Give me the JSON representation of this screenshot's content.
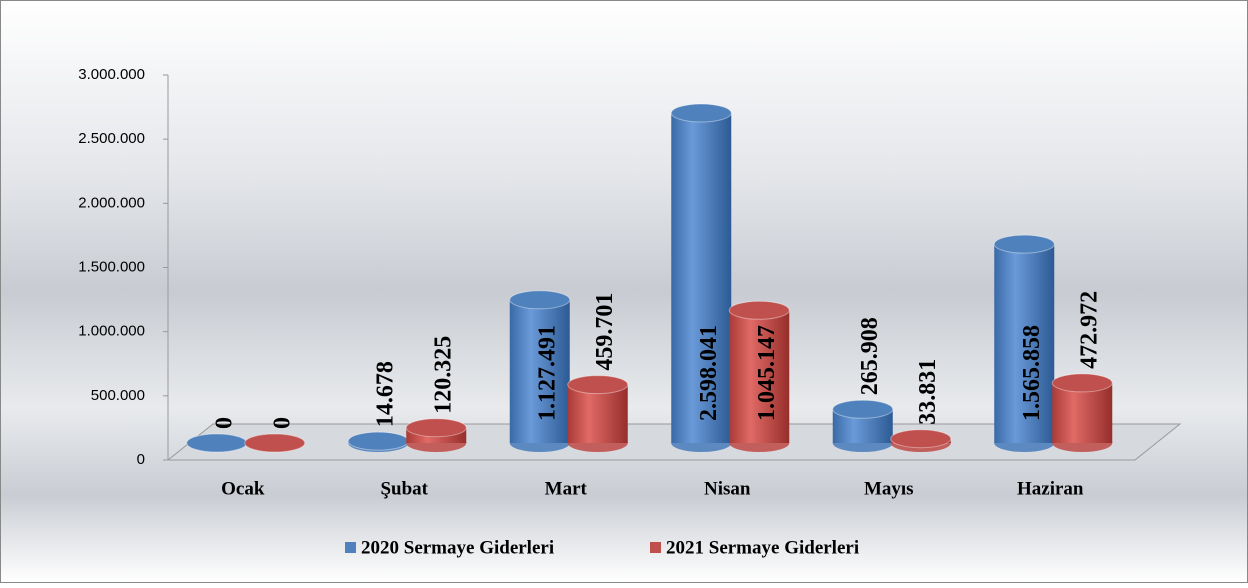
{
  "chart_data": {
    "type": "bar",
    "categories": [
      "Ocak",
      "Şubat",
      "Mart",
      "Nisan",
      "Mayıs",
      "Haziran"
    ],
    "series": [
      {
        "name": "2020 Sermaye Giderleri",
        "color": "#4f81bd",
        "values": [
          0,
          14678,
          1127491,
          2598041,
          265908,
          1565858
        ],
        "value_labels": [
          "0",
          "14.678",
          "1.127.491",
          "2.598.041",
          "265.908",
          "1.565.858"
        ]
      },
      {
        "name": "2021 Sermaye Giderleri",
        "color": "#c0504d",
        "values": [
          0,
          120325,
          459701,
          1045147,
          33831,
          472972
        ],
        "value_labels": [
          "0",
          "120.325",
          "459.701",
          "1.045.147",
          "33.831",
          "472.972"
        ]
      }
    ],
    "ylim": [
      0,
      3000000
    ],
    "yticks": [
      0,
      {
        "value": 500000,
        "label": "500.000"
      },
      {
        "value": 1000000,
        "label": "1.000.000"
      },
      {
        "value": 1500000,
        "label": "1.500.000"
      },
      {
        "value": 2000000,
        "label": "2.000.000"
      },
      {
        "value": 2500000,
        "label": "2.500.000"
      },
      {
        "value": 3000000,
        "label": "3.000.000"
      }
    ],
    "legend": "bottom"
  }
}
